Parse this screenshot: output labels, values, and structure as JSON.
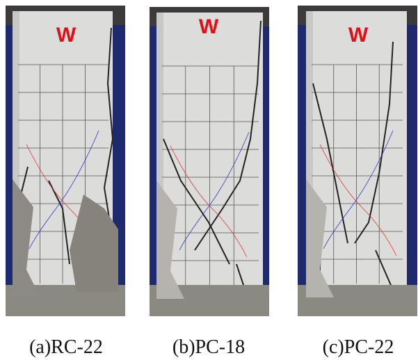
{
  "panels": [
    {
      "mark": "W",
      "caption": "(a)RC-22"
    },
    {
      "mark": "W",
      "caption": "(b)PC-18"
    },
    {
      "mark": "W",
      "caption": "(c)PC-22"
    }
  ]
}
